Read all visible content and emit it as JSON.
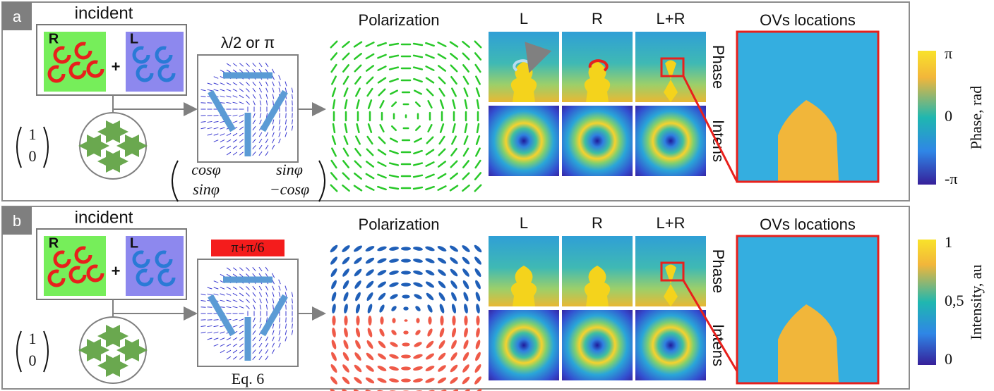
{
  "panels": [
    {
      "label": "a",
      "incident": {
        "title": "incident",
        "right": "R",
        "left": "L",
        "plus": "+"
      },
      "jones_vector": [
        "1",
        "0"
      ],
      "element": {
        "title": "λ/2 or π",
        "matrix": [
          [
            "cosφ",
            "sinφ"
          ],
          [
            "sinφ",
            "−cosφ"
          ]
        ]
      },
      "polarization": {
        "title": "Polarization"
      },
      "maps": {
        "columns": [
          "L",
          "R",
          "L+R"
        ],
        "rows": [
          "Phase",
          "Intens"
        ]
      },
      "zoom": {
        "title": "OVs locations"
      },
      "colorbar": {
        "label": "Phase, rad",
        "ticks": [
          "π",
          "0",
          "-π"
        ]
      }
    },
    {
      "label": "b",
      "incident": {
        "title": "incident",
        "right": "R",
        "left": "L",
        "plus": "+"
      },
      "jones_vector": [
        "1",
        "0"
      ],
      "element": {
        "title": "π+π/6",
        "caption": "Eq. 6"
      },
      "polarization": {
        "title": "Polarization"
      },
      "maps": {
        "columns": [
          "L",
          "R",
          "L+R"
        ],
        "rows": [
          "Phase",
          "Intens"
        ]
      },
      "zoom": {
        "title": "OVs locations"
      },
      "colorbar": {
        "label": "Intensity, au",
        "ticks": [
          "1",
          "0,5",
          "0"
        ]
      }
    }
  ]
}
